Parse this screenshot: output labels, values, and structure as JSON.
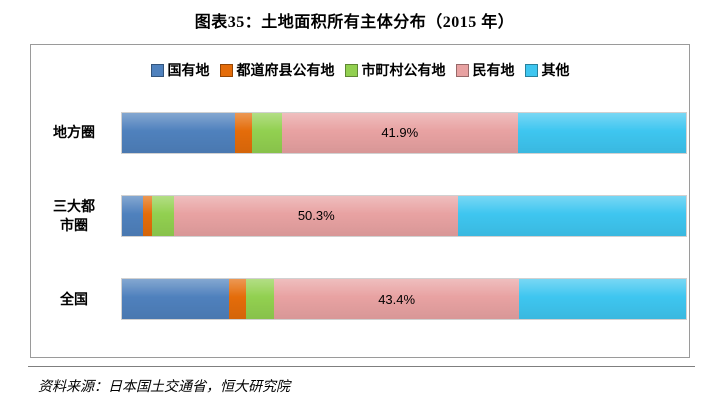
{
  "title": "图表35：土地面积所有主体分布（2015 年）",
  "source_note": "资料来源：日本国土交通省，恒大研究院",
  "chart_data": {
    "type": "bar",
    "orientation": "horizontal",
    "stacked": true,
    "unit": "%",
    "xlim": [
      0,
      100
    ],
    "legend_position": "top",
    "categories": [
      {
        "key": "local-area",
        "label": "地方圈"
      },
      {
        "key": "three-metro",
        "label": "三大都市圈"
      },
      {
        "key": "national",
        "label": "全国"
      }
    ],
    "series": [
      {
        "key": "state-owned",
        "name": "国有地",
        "color": "#4f81bd",
        "values": [
          20.0,
          3.7,
          19.0
        ]
      },
      {
        "key": "prefecture-public",
        "name": "都道府县公有地",
        "color": "#e46c0a",
        "values": [
          3.0,
          1.6,
          3.0
        ]
      },
      {
        "key": "municipal-public",
        "name": "市町村公有地",
        "color": "#92d050",
        "values": [
          5.3,
          4.0,
          5.0
        ]
      },
      {
        "key": "private",
        "name": "民有地",
        "color": "#e8a2a2",
        "values": [
          41.9,
          50.3,
          43.4
        ]
      },
      {
        "key": "other",
        "name": "其他",
        "color": "#3ec6f0",
        "values": [
          29.8,
          40.4,
          29.6
        ]
      }
    ],
    "data_labels": {
      "series_key": "private",
      "labels": [
        "41.9%",
        "50.3%",
        "43.4%"
      ]
    }
  }
}
